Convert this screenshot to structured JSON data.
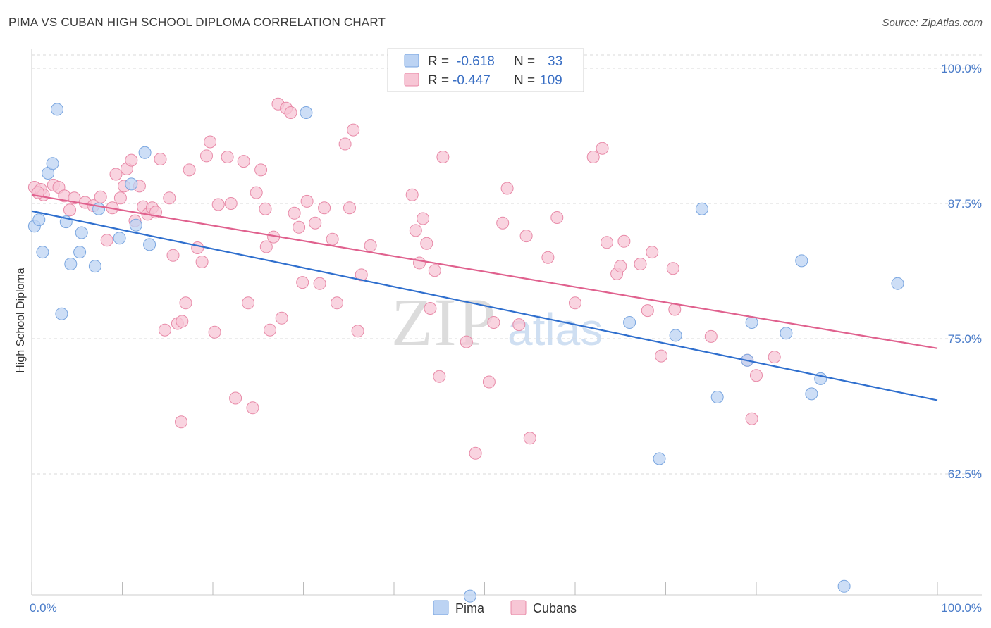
{
  "title": "PIMA VS CUBAN HIGH SCHOOL DIPLOMA CORRELATION CHART",
  "source": "Source: ZipAtlas.com",
  "colors": {
    "pima_fill": "#bcd3f3",
    "pima_stroke": "#7aa6e0",
    "pima_line": "#2f6fce",
    "cubans_fill": "#f7c6d5",
    "cubans_stroke": "#e88aa8",
    "cubans_line": "#e0618e",
    "tick_text": "#4a7cc9",
    "grid": "#d9d9d9"
  },
  "legend": {
    "rows": [
      {
        "series": "Pima",
        "r_label": "R =",
        "r_value": "-0.618",
        "n_label": "N =",
        "n_value": "33"
      },
      {
        "series": "Cubans",
        "r_label": "R =",
        "r_value": "-0.447",
        "n_label": "N =",
        "n_value": "109"
      }
    ]
  },
  "watermark": {
    "zip": "ZIP",
    "atlas": "atlas"
  },
  "chart_data": {
    "type": "scatter",
    "title": "PIMA VS CUBAN HIGH SCHOOL DIPLOMA CORRELATION CHART",
    "xlabel": "",
    "ylabel": "High School Diploma",
    "xlim": [
      0,
      100
    ],
    "ylim": [
      51.5,
      103
    ],
    "x_tick_labels": [
      "0.0%",
      "100.0%"
    ],
    "y_ticks": [
      {
        "value": 100.0,
        "label": "100.0%"
      },
      {
        "value": 87.5,
        "label": "87.5%"
      },
      {
        "value": 75.0,
        "label": "75.0%"
      },
      {
        "value": 62.5,
        "label": "62.5%"
      }
    ],
    "legend_position": "bottom",
    "series": [
      {
        "name": "Pima",
        "r": -0.618,
        "n": 33,
        "trend": {
          "x": [
            0,
            100
          ],
          "y": [
            86.8,
            69.3
          ]
        },
        "points": [
          [
            0.3,
            85.4
          ],
          [
            0.8,
            86.0
          ],
          [
            1.2,
            83.0
          ],
          [
            1.8,
            90.3
          ],
          [
            2.3,
            91.2
          ],
          [
            2.8,
            96.2
          ],
          [
            3.3,
            77.3
          ],
          [
            3.8,
            85.8
          ],
          [
            4.3,
            81.9
          ],
          [
            5.3,
            83.0
          ],
          [
            5.5,
            84.8
          ],
          [
            7.0,
            81.7
          ],
          [
            7.4,
            87.0
          ],
          [
            9.7,
            84.3
          ],
          [
            11.0,
            89.3
          ],
          [
            11.5,
            85.5
          ],
          [
            12.5,
            92.2
          ],
          [
            13.0,
            83.7
          ],
          [
            30.3,
            95.9
          ],
          [
            48.4,
            51.2
          ],
          [
            69.3,
            63.9
          ],
          [
            71.1,
            75.3
          ],
          [
            74.0,
            87.0
          ],
          [
            75.7,
            69.6
          ],
          [
            79.0,
            73.0
          ],
          [
            79.5,
            76.5
          ],
          [
            83.3,
            75.5
          ],
          [
            85.0,
            82.2
          ],
          [
            86.1,
            69.9
          ],
          [
            87.1,
            71.3
          ],
          [
            89.7,
            52.1
          ],
          [
            95.6,
            80.1
          ],
          [
            66.0,
            76.5
          ]
        ]
      },
      {
        "name": "Cubans",
        "r": -0.447,
        "n": 109,
        "trend": {
          "x": [
            0,
            100
          ],
          "y": [
            88.3,
            74.1
          ]
        },
        "points": [
          [
            0.3,
            89.0
          ],
          [
            1.0,
            88.8
          ],
          [
            1.3,
            88.3
          ],
          [
            2.4,
            89.2
          ],
          [
            3.0,
            89.0
          ],
          [
            3.6,
            88.2
          ],
          [
            4.2,
            86.9
          ],
          [
            4.7,
            88.0
          ],
          [
            5.9,
            87.6
          ],
          [
            6.8,
            87.3
          ],
          [
            7.6,
            88.1
          ],
          [
            8.3,
            84.1
          ],
          [
            8.9,
            87.1
          ],
          [
            9.3,
            90.2
          ],
          [
            9.8,
            88.0
          ],
          [
            10.2,
            89.1
          ],
          [
            10.5,
            90.7
          ],
          [
            11.0,
            91.5
          ],
          [
            11.4,
            85.9
          ],
          [
            11.9,
            89.1
          ],
          [
            12.3,
            87.2
          ],
          [
            12.8,
            86.5
          ],
          [
            13.3,
            87.1
          ],
          [
            13.7,
            86.7
          ],
          [
            14.2,
            91.6
          ],
          [
            14.7,
            75.8
          ],
          [
            15.2,
            88.0
          ],
          [
            15.6,
            82.7
          ],
          [
            16.1,
            76.4
          ],
          [
            16.5,
            67.3
          ],
          [
            17.0,
            78.3
          ],
          [
            17.4,
            90.6
          ],
          [
            18.3,
            83.4
          ],
          [
            18.8,
            82.1
          ],
          [
            19.3,
            91.9
          ],
          [
            19.7,
            93.2
          ],
          [
            20.2,
            75.6
          ],
          [
            20.6,
            87.4
          ],
          [
            21.6,
            91.8
          ],
          [
            22.0,
            87.5
          ],
          [
            22.5,
            69.5
          ],
          [
            23.4,
            91.4
          ],
          [
            23.9,
            78.3
          ],
          [
            24.4,
            68.6
          ],
          [
            24.8,
            88.5
          ],
          [
            25.3,
            90.6
          ],
          [
            25.8,
            87.0
          ],
          [
            26.3,
            75.8
          ],
          [
            26.7,
            84.4
          ],
          [
            27.2,
            96.7
          ],
          [
            27.6,
            76.9
          ],
          [
            28.1,
            96.3
          ],
          [
            28.6,
            95.9
          ],
          [
            29.0,
            86.6
          ],
          [
            29.5,
            85.3
          ],
          [
            29.9,
            80.2
          ],
          [
            30.4,
            87.7
          ],
          [
            31.3,
            85.7
          ],
          [
            31.8,
            80.1
          ],
          [
            32.3,
            87.1
          ],
          [
            33.2,
            84.2
          ],
          [
            33.7,
            78.3
          ],
          [
            34.6,
            93.0
          ],
          [
            35.1,
            87.1
          ],
          [
            35.5,
            94.3
          ],
          [
            36.0,
            75.7
          ],
          [
            36.4,
            80.9
          ],
          [
            37.4,
            83.6
          ],
          [
            42.0,
            88.3
          ],
          [
            42.4,
            85.0
          ],
          [
            42.8,
            82.0
          ],
          [
            43.2,
            86.1
          ],
          [
            43.6,
            83.8
          ],
          [
            44.0,
            77.8
          ],
          [
            44.5,
            81.3
          ],
          [
            45.0,
            71.5
          ],
          [
            45.4,
            91.8
          ],
          [
            48.0,
            74.7
          ],
          [
            49.0,
            64.4
          ],
          [
            50.5,
            71.0
          ],
          [
            51.0,
            76.5
          ],
          [
            52.0,
            85.7
          ],
          [
            52.5,
            88.9
          ],
          [
            53.8,
            76.3
          ],
          [
            54.6,
            84.5
          ],
          [
            55.0,
            65.8
          ],
          [
            57.0,
            82.5
          ],
          [
            58.0,
            86.2
          ],
          [
            60.0,
            78.3
          ],
          [
            62.0,
            91.8
          ],
          [
            63.0,
            92.6
          ],
          [
            63.5,
            83.9
          ],
          [
            64.6,
            81.0
          ],
          [
            65.0,
            81.7
          ],
          [
            65.4,
            84.0
          ],
          [
            67.2,
            81.9
          ],
          [
            68.0,
            77.6
          ],
          [
            68.5,
            83.0
          ],
          [
            69.5,
            73.4
          ],
          [
            70.8,
            81.5
          ],
          [
            71.0,
            77.7
          ],
          [
            75.0,
            75.2
          ],
          [
            79.0,
            73.0
          ],
          [
            79.5,
            67.6
          ],
          [
            80.0,
            71.6
          ],
          [
            82.0,
            73.3
          ],
          [
            25.9,
            83.5
          ],
          [
            16.6,
            76.6
          ],
          [
            0.7,
            88.5
          ]
        ]
      }
    ]
  }
}
